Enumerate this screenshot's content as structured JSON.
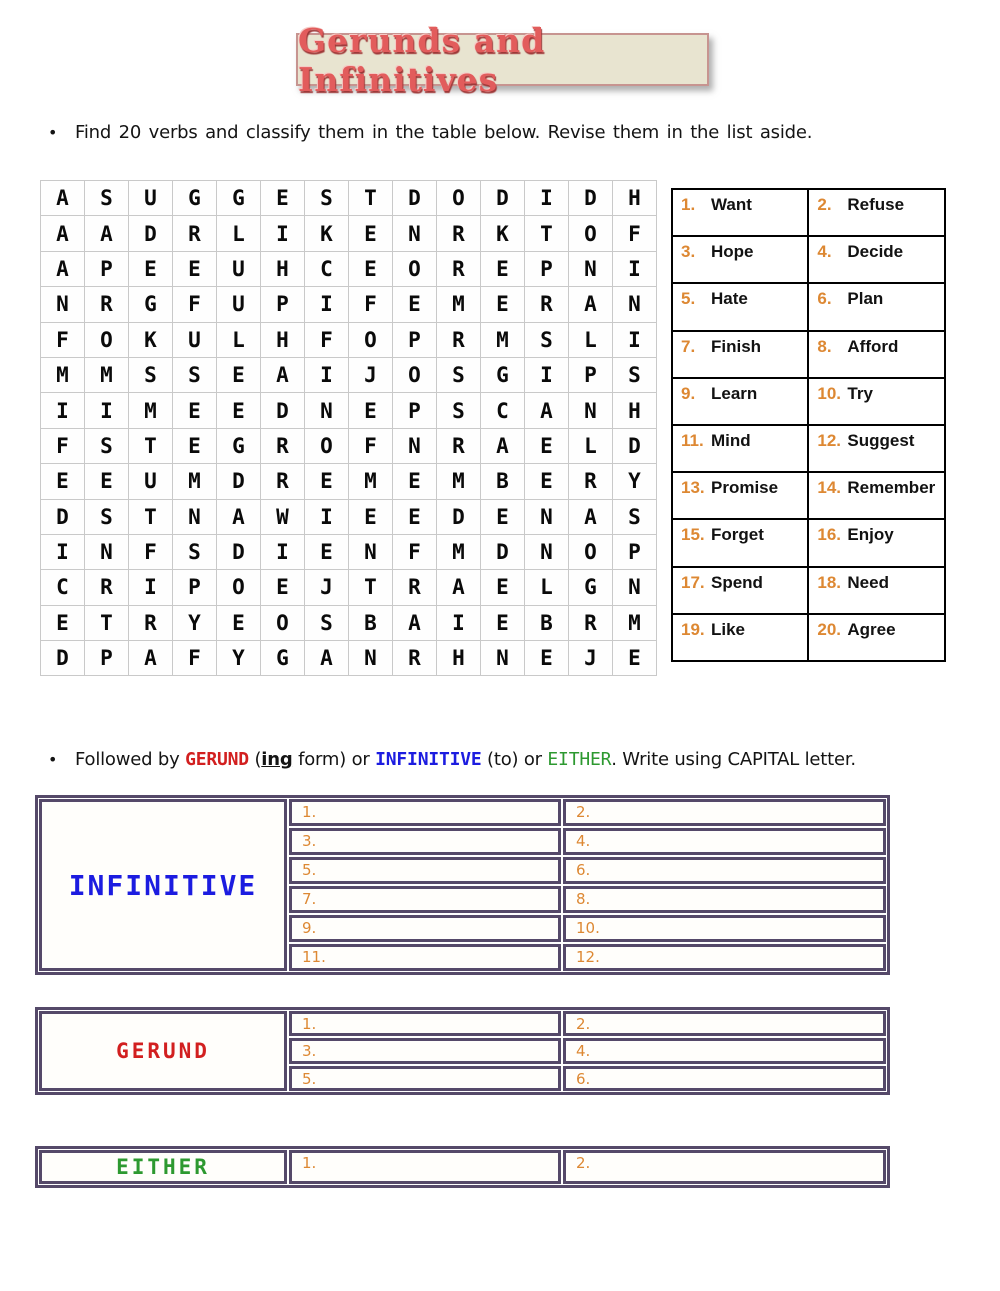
{
  "title": "Gerunds and Infinitives",
  "instructions": {
    "bullet1": "Find 20 verbs and classify them in the table below. Revise them in the list aside.",
    "bullet2_segments": [
      {
        "text": "Followed by ",
        "style": "plain"
      },
      {
        "text": "GERUND",
        "style": "red"
      },
      {
        "text": " (",
        "style": "plain"
      },
      {
        "text": "ing",
        "style": "underline"
      },
      {
        "text": " form) or ",
        "style": "plain"
      },
      {
        "text": "INFINITIVE",
        "style": "blue"
      },
      {
        "text": " (to) or ",
        "style": "plain"
      },
      {
        "text": "EITHER",
        "style": "green"
      },
      {
        "text": ". Write using CAPITAL letter.",
        "style": "plain"
      }
    ]
  },
  "word_search": {
    "rows": [
      "ASUGGESTDODIDH",
      "AADRLIKENRKTOF",
      "APEEUHCEOREPNI",
      "NRGFUPIFEMERAN",
      "FOKULHFOPRMSLI",
      "MMSSEAIJOSGIPS",
      "IIMEEDNEPSCANH",
      "FSTEGROFNRAELD",
      "EEUMDREMEMBERY",
      "DSTNAWIEEDENAS",
      "INFSDIENFMDNOP",
      "CRIPOEJTRAELGN",
      "ETRYEOSBAIEBRM",
      "DPAFYGANRHNEJE"
    ]
  },
  "verb_list": {
    "items": [
      {
        "num": "1.",
        "word": "Want"
      },
      {
        "num": "2.",
        "word": "Refuse"
      },
      {
        "num": "3.",
        "word": "Hope"
      },
      {
        "num": "4.",
        "word": "Decide"
      },
      {
        "num": "5.",
        "word": "Hate"
      },
      {
        "num": "6.",
        "word": "Plan"
      },
      {
        "num": "7.",
        "word": "Finish"
      },
      {
        "num": "8.",
        "word": "Afford"
      },
      {
        "num": "9.",
        "word": "Learn"
      },
      {
        "num": "10.",
        "word": "Try"
      },
      {
        "num": "11.",
        "word": "Mind"
      },
      {
        "num": "12.",
        "word": "Suggest"
      },
      {
        "num": "13.",
        "word": "Promise"
      },
      {
        "num": "14.",
        "word": "Remember"
      },
      {
        "num": "15.",
        "word": "Forget"
      },
      {
        "num": "16.",
        "word": "Enjoy"
      },
      {
        "num": "17.",
        "word": "Spend"
      },
      {
        "num": "18.",
        "word": "Need"
      },
      {
        "num": "19.",
        "word": "Like"
      },
      {
        "num": "20.",
        "word": "Agree"
      }
    ]
  },
  "classification_tables": [
    {
      "id": "infinitive",
      "label": "INFINITIVE",
      "label_color": "#1c1ce0",
      "slot_labels": [
        "1.",
        "2.",
        "3.",
        "4.",
        "5.",
        "6.",
        "7.",
        "8.",
        "9.",
        "10.",
        "11.",
        "12."
      ]
    },
    {
      "id": "gerund",
      "label": "GERUND",
      "label_color": "#d21f1f",
      "slot_labels": [
        "1.",
        "2.",
        "3.",
        "4.",
        "5.",
        "6."
      ]
    },
    {
      "id": "either",
      "label": "EITHER",
      "label_color": "#2d9930",
      "slot_labels": [
        "1.",
        "2."
      ]
    }
  ],
  "colors": {
    "title_red": "#e25c5c",
    "title_background": "#e8e4d0",
    "gerund_red": "#d21f1f",
    "infinitive_blue": "#1c1ce0",
    "either_green": "#2d9930",
    "number_orange": "#dd8833",
    "table_purple": "#554969"
  }
}
